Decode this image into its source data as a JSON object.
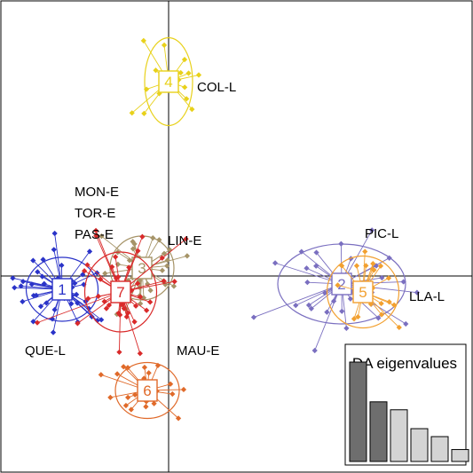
{
  "chart_data": {
    "type": "scatter",
    "subtype": "DAPC scatterplot",
    "frame_color": "#000000",
    "axes_lines": true,
    "clusters": [
      {
        "id": "1",
        "color": "#2a33c8",
        "center": [
          -4.0,
          -0.5
        ],
        "sd": [
          0.9,
          0.8
        ],
        "n": 44
      },
      {
        "id": "2",
        "color": "#7a6fc0",
        "center": [
          6.5,
          -0.3
        ],
        "sd": [
          1.6,
          1.0
        ],
        "n": 30
      },
      {
        "id": "3",
        "color": "#a69468",
        "center": [
          -1.0,
          0.3
        ],
        "sd": [
          0.8,
          0.8
        ],
        "n": 34
      },
      {
        "id": "4",
        "color": "#e8d11a",
        "center": [
          0.0,
          7.3
        ],
        "sd": [
          0.6,
          1.1
        ],
        "n": 18
      },
      {
        "id": "5",
        "color": "#f2a030",
        "center": [
          7.3,
          -0.6
        ],
        "sd": [
          0.9,
          0.9
        ],
        "n": 20
      },
      {
        "id": "6",
        "color": "#e06a2a",
        "center": [
          -0.8,
          -4.3
        ],
        "sd": [
          0.8,
          0.7
        ],
        "n": 28
      },
      {
        "id": "7",
        "color": "#d92a2a",
        "center": [
          -1.8,
          -0.6
        ],
        "sd": [
          0.9,
          1.0
        ],
        "n": 42
      }
    ],
    "annotations": [
      "COL-L",
      "MON-E",
      "TOR-E",
      "PAS-E",
      "LIN-E",
      "PIC-L",
      "LLA-L",
      "QUE-L",
      "MAU-E"
    ],
    "inset": {
      "title": "DA eigenvalues",
      "values": [
        100,
        60,
        52,
        33,
        25,
        12
      ],
      "colors": [
        "#6e6e6e",
        "#6e6e6e",
        "#d4d4d4",
        "#d4d4d4",
        "#d4d4d4",
        "#d4d4d4"
      ]
    }
  }
}
